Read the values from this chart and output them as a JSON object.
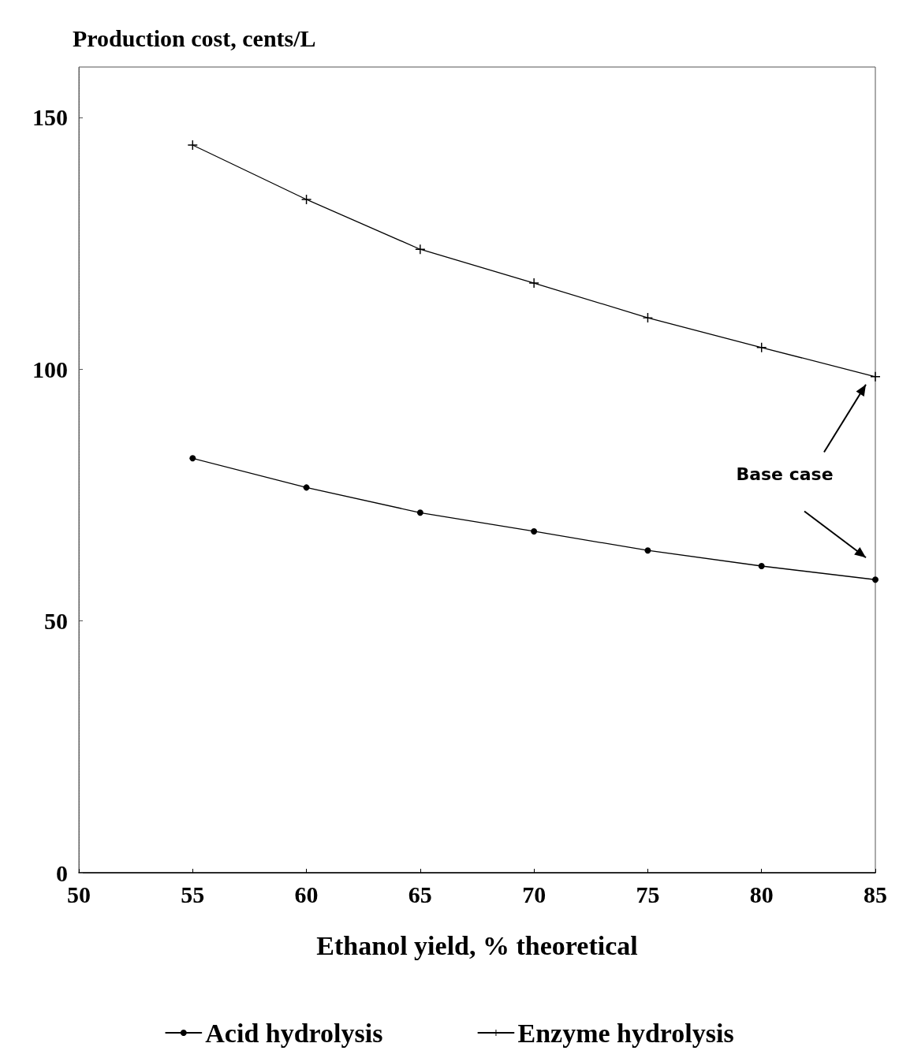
{
  "chart_data": {
    "type": "line",
    "x": [
      55,
      60,
      65,
      70,
      75,
      80,
      85
    ],
    "series": [
      {
        "name": "Acid hydrolysis",
        "color": "#000000",
        "marker": "circle",
        "values": [
          82.3,
          76.5,
          71.5,
          67.8,
          64.0,
          60.9,
          58.2
        ]
      },
      {
        "name": "Enzyme hydrolysis",
        "color": "#000000",
        "marker": "cross",
        "values": [
          144.5,
          133.7,
          123.8,
          117.1,
          110.2,
          104.3,
          98.5
        ]
      }
    ],
    "ylabel": "Production cost, cents/L",
    "xlabel": "Ethanol yield, % theoretical",
    "xlim": [
      50,
      85
    ],
    "xticks": [
      50,
      55,
      60,
      65,
      70,
      75,
      80,
      85
    ],
    "ylim": [
      0,
      160
    ],
    "yticks": [
      0,
      50,
      100,
      150
    ],
    "annotations": [
      "Base case"
    ],
    "grid": false,
    "legend": "bottom",
    "line_style": "solid"
  }
}
